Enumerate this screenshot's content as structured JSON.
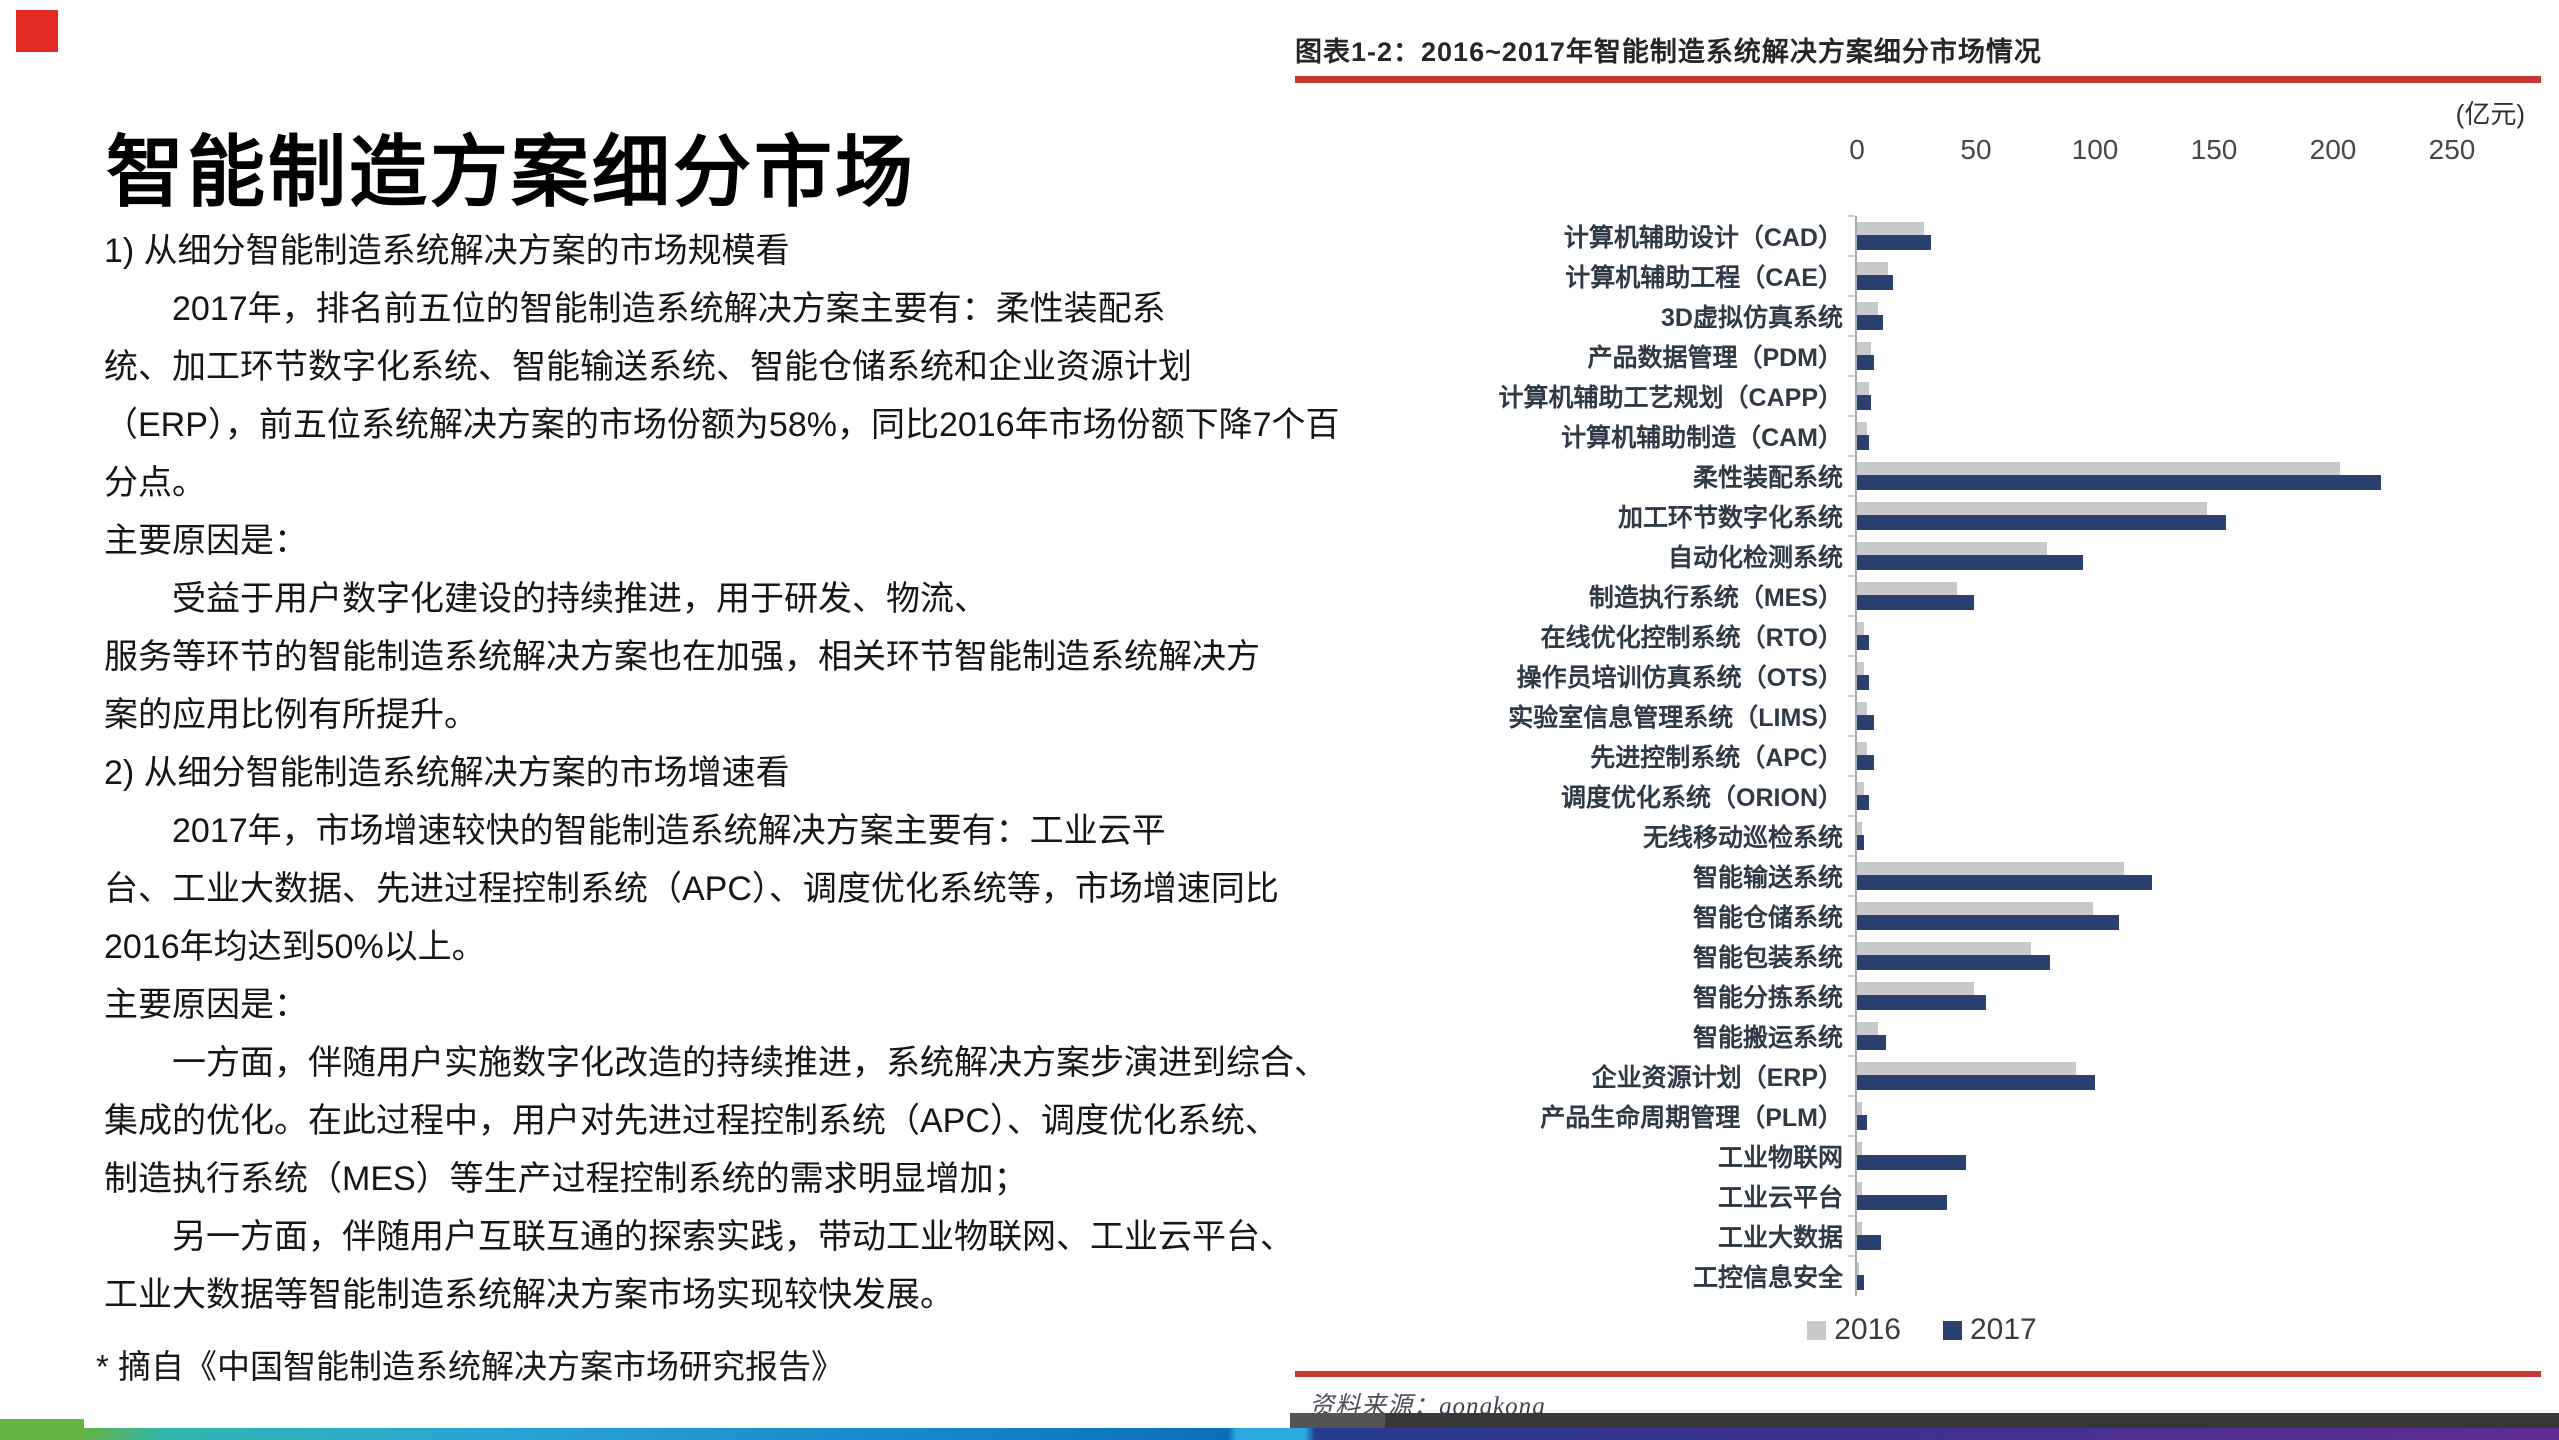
{
  "slide": {
    "title": "智能制造方案细分市场",
    "accent_color": "#e32b24",
    "body_lines": [
      "1) 从细分智能制造系统解决方案的市场规模看",
      "　　2017年，排名前五位的智能制造系统解决方案主要有：柔性装配系",
      "统、加工环节数字化系统、智能输送系统、智能仓储系统和企业资源计划",
      "（ERP），前五位系统解决方案的市场份额为58%，同比2016年市场份额下降7个百",
      "分点。",
      "主要原因是：",
      "　　受益于用户数字化建设的持续推进，用于研发、物流、",
      "服务等环节的智能制造系统解决方案也在加强，相关环节智能制造系统解决方",
      "案的应用比例有所提升。",
      "2) 从细分智能制造系统解决方案的市场增速看",
      "　　2017年，市场增速较快的智能制造系统解决方案主要有：工业云平",
      "台、工业大数据、先进过程控制系统（APC）、调度优化系统等，市场增速同比",
      "2016年均达到50%以上。",
      "主要原因是：",
      "　　一方面，伴随用户实施数字化改造的持续推进，系统解决方案步演进到综合、",
      "集成的优化。在此过程中，用户对先进过程控制系统（APC）、调度优化系统、",
      "制造执行系统（MES）等生产过程控制系统的需求明显增加；",
      "　　另一方面，伴随用户互联互通的探索实践，带动工业物联网、工业云平台、",
      "工业大数据等智能制造系统解决方案市场实现较快发展。"
    ],
    "footnote": "* 摘自《中国智能制造系统解决方案市场研究报告》"
  },
  "chart": {
    "title": "图表1-2：2016~2017年智能制造系统解决方案细分市场情况",
    "unit_label": "(亿元)",
    "rule_color": "#c63832",
    "source_label": "资料来源：",
    "source_value": "gongkong",
    "legend": [
      {
        "label": "2016",
        "color": "#c8c9cb"
      },
      {
        "label": "2017",
        "color": "#2a406f"
      }
    ]
  },
  "chart_data": {
    "type": "bar",
    "orientation": "horizontal",
    "title": "2016~2017年智能制造系统解决方案细分市场情况",
    "unit": "亿元",
    "xlim": [
      0,
      250
    ],
    "x_ticks": [
      0,
      50,
      100,
      150,
      200,
      250
    ],
    "legend_position": "bottom",
    "grid": false,
    "categories": [
      "计算机辅助设计（CAD）",
      "计算机辅助工程（CAE）",
      "3D虚拟仿真系统",
      "产品数据管理（PDM）",
      "计算机辅助工艺规划（CAPP）",
      "计算机辅助制造（CAM）",
      "柔性装配系统",
      "加工环节数字化系统",
      "自动化检测系统",
      "制造执行系统（MES）",
      "在线优化控制系统（RTO）",
      "操作员培训仿真系统（OTS）",
      "实验室信息管理系统（LIMS）",
      "先进控制系统（APC）",
      "调度优化系统（ORION）",
      "无线移动巡检系统",
      "智能输送系统",
      "智能仓储系统",
      "智能包装系统",
      "智能分拣系统",
      "智能搬运系统",
      "企业资源计划（ERP）",
      "产品生命周期管理（PLM）",
      "工业物联网",
      "工业云平台",
      "工业大数据",
      "工控信息安全"
    ],
    "series": [
      {
        "name": "2016",
        "color": "#c8c9cb",
        "values": [
          28,
          13,
          9,
          6,
          5,
          4,
          203,
          147,
          80,
          42,
          3,
          3,
          4,
          4,
          3,
          2,
          112,
          99,
          73,
          49,
          9,
          92,
          2,
          2,
          2,
          2,
          1
        ]
      },
      {
        "name": "2017",
        "color": "#2a406f",
        "values": [
          31,
          15,
          11,
          7,
          6,
          5,
          220,
          155,
          95,
          49,
          5,
          5,
          7,
          7,
          5,
          3,
          124,
          110,
          81,
          54,
          12,
          100,
          4,
          46,
          38,
          10,
          3
        ]
      }
    ]
  }
}
